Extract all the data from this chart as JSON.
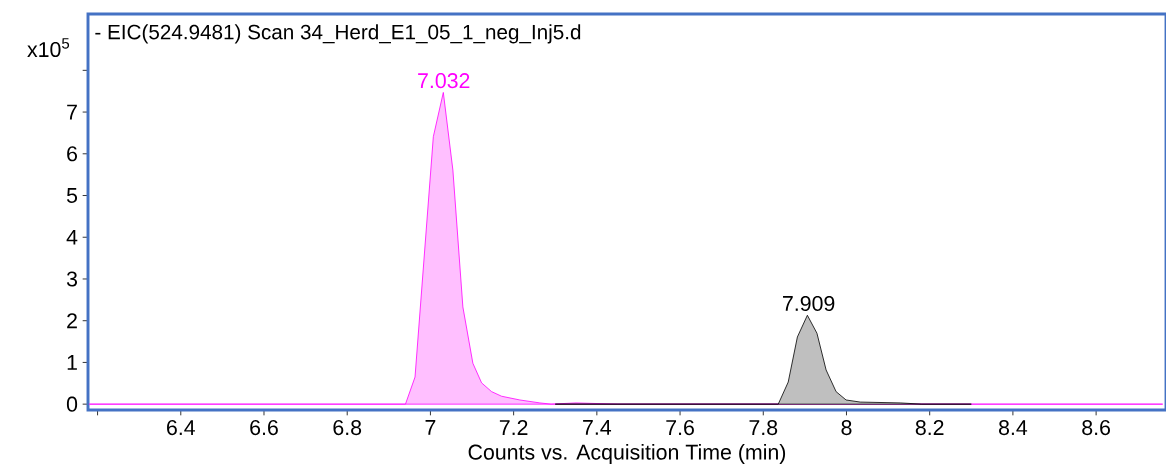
{
  "chart_data": {
    "type": "area",
    "title": "- EIC(524.9481) Scan 34_Herd_E1_05_1_neg_Inj5.d",
    "xlabel": "Counts vs. Acquisition Time (min)",
    "ylabel": "x10$^{5}$",
    "xlim": [
      6.177,
      8.768
    ],
    "ylim": [
      -0.14,
      9.35
    ],
    "xticks": [
      {
        "value": 6.2,
        "label": null
      },
      6.4,
      6.6,
      6.8,
      7,
      7.2,
      7.4,
      7.6,
      7.8,
      8,
      8.2,
      8.4,
      8.6
    ],
    "yticks": [
      0,
      1,
      2,
      3,
      4,
      5,
      6,
      7,
      {
        "value": 8,
        "label": null
      }
    ],
    "grid": false,
    "series": [
      {
        "color": "#ff00ff",
        "x": [
          6.18,
          6.94,
          6.963,
          7.007,
          7.031,
          7.054,
          7.078,
          7.102,
          7.123,
          7.147,
          7.171,
          7.215,
          7.263,
          7.29,
          7.35,
          7.45,
          8.76
        ],
        "values": [
          0,
          0,
          0.65,
          6.41,
          7.47,
          5.61,
          2.33,
          0.98,
          0.51,
          0.3,
          0.19,
          0.1,
          0.03,
          0,
          0.03,
          0,
          0
        ]
      },
      {
        "color": "#000000",
        "x": [
          7.3,
          7.836,
          7.86,
          7.882,
          7.906,
          7.929,
          7.951,
          7.975,
          7.999,
          8.033,
          8.129,
          8.181,
          8.3
        ],
        "values": [
          0,
          0,
          0.53,
          1.61,
          2.13,
          1.7,
          0.82,
          0.3,
          0.1,
          0.05,
          0.03,
          0,
          0
        ]
      }
    ],
    "annotations": [
      {
        "text": "7.032",
        "x": 7.032,
        "y": 7.47
      },
      {
        "text": "7.909",
        "x": 7.909,
        "y": 2.13
      }
    ]
  }
}
